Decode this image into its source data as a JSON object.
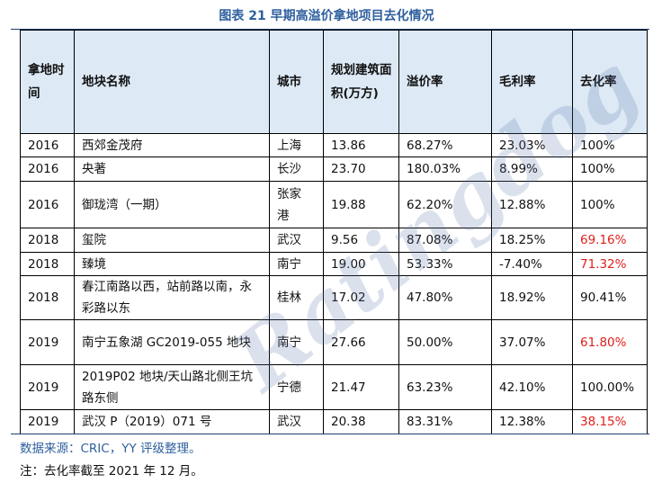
{
  "title": "图表 21 早期高溢价拿地项目去化情况",
  "columns": [
    "拿地时间",
    "地块名称",
    "城市",
    "规划建筑面积(万方)",
    "溢价率",
    "毛利率",
    "去化率"
  ],
  "rows": [
    {
      "year": "2016",
      "name": "西郊金茂府",
      "city": "上海",
      "area": "13.86",
      "premium": "68.27%",
      "margin": "23.03%",
      "sellthrough": "100%",
      "highlight": false
    },
    {
      "year": "2016",
      "name": "央著",
      "city": "长沙",
      "area": "23.70",
      "premium": "180.03%",
      "margin": "8.99%",
      "sellthrough": "100%",
      "highlight": false
    },
    {
      "year": "2016",
      "name": "御珑湾（一期）",
      "city": "张家港",
      "area": "19.88",
      "premium": "62.20%",
      "margin": "12.88%",
      "sellthrough": "100%",
      "highlight": false
    },
    {
      "year": "2018",
      "name": "玺院",
      "city": "武汉",
      "area": "9.56",
      "premium": "87.08%",
      "margin": "18.25%",
      "sellthrough": "69.16%",
      "highlight": true
    },
    {
      "year": "2018",
      "name": "臻境",
      "city": "南宁",
      "area": "19.00",
      "premium": "53.33%",
      "margin": "-7.40%",
      "sellthrough": "71.32%",
      "highlight": true
    },
    {
      "year": "2018",
      "name": "春江南路以西，站前路以南，永彩路以东",
      "city": "桂林",
      "area": "17.02",
      "premium": "47.80%",
      "margin": "18.92%",
      "sellthrough": "90.41%",
      "highlight": false
    },
    {
      "year": "2019",
      "name": "南宁五象湖 GC2019-055 地块",
      "city": "南宁",
      "area": "27.66",
      "premium": "50.00%",
      "margin": "37.07%",
      "sellthrough": "61.80%",
      "highlight": true
    },
    {
      "year": "2019",
      "name": "2019P02 地块/天山路北侧王坑路东侧",
      "city": "宁德",
      "area": "21.47",
      "premium": "63.23%",
      "margin": "42.10%",
      "sellthrough": "100.00%",
      "highlight": false
    },
    {
      "year": "2019",
      "name": "武汉 P（2019）071 号",
      "city": "武汉",
      "area": "20.38",
      "premium": "83.31%",
      "margin": "12.38%",
      "sellthrough": "38.15%",
      "highlight": true
    }
  ],
  "source": "数据来源：CRIC，YY 评级整理。",
  "note": "注：去化率截至 2021 年 12 月。",
  "watermark": "Ratingdog",
  "colors": {
    "title": "#2e5f9e",
    "header_bg": "#dde9f5",
    "highlight": "#e0201b"
  }
}
